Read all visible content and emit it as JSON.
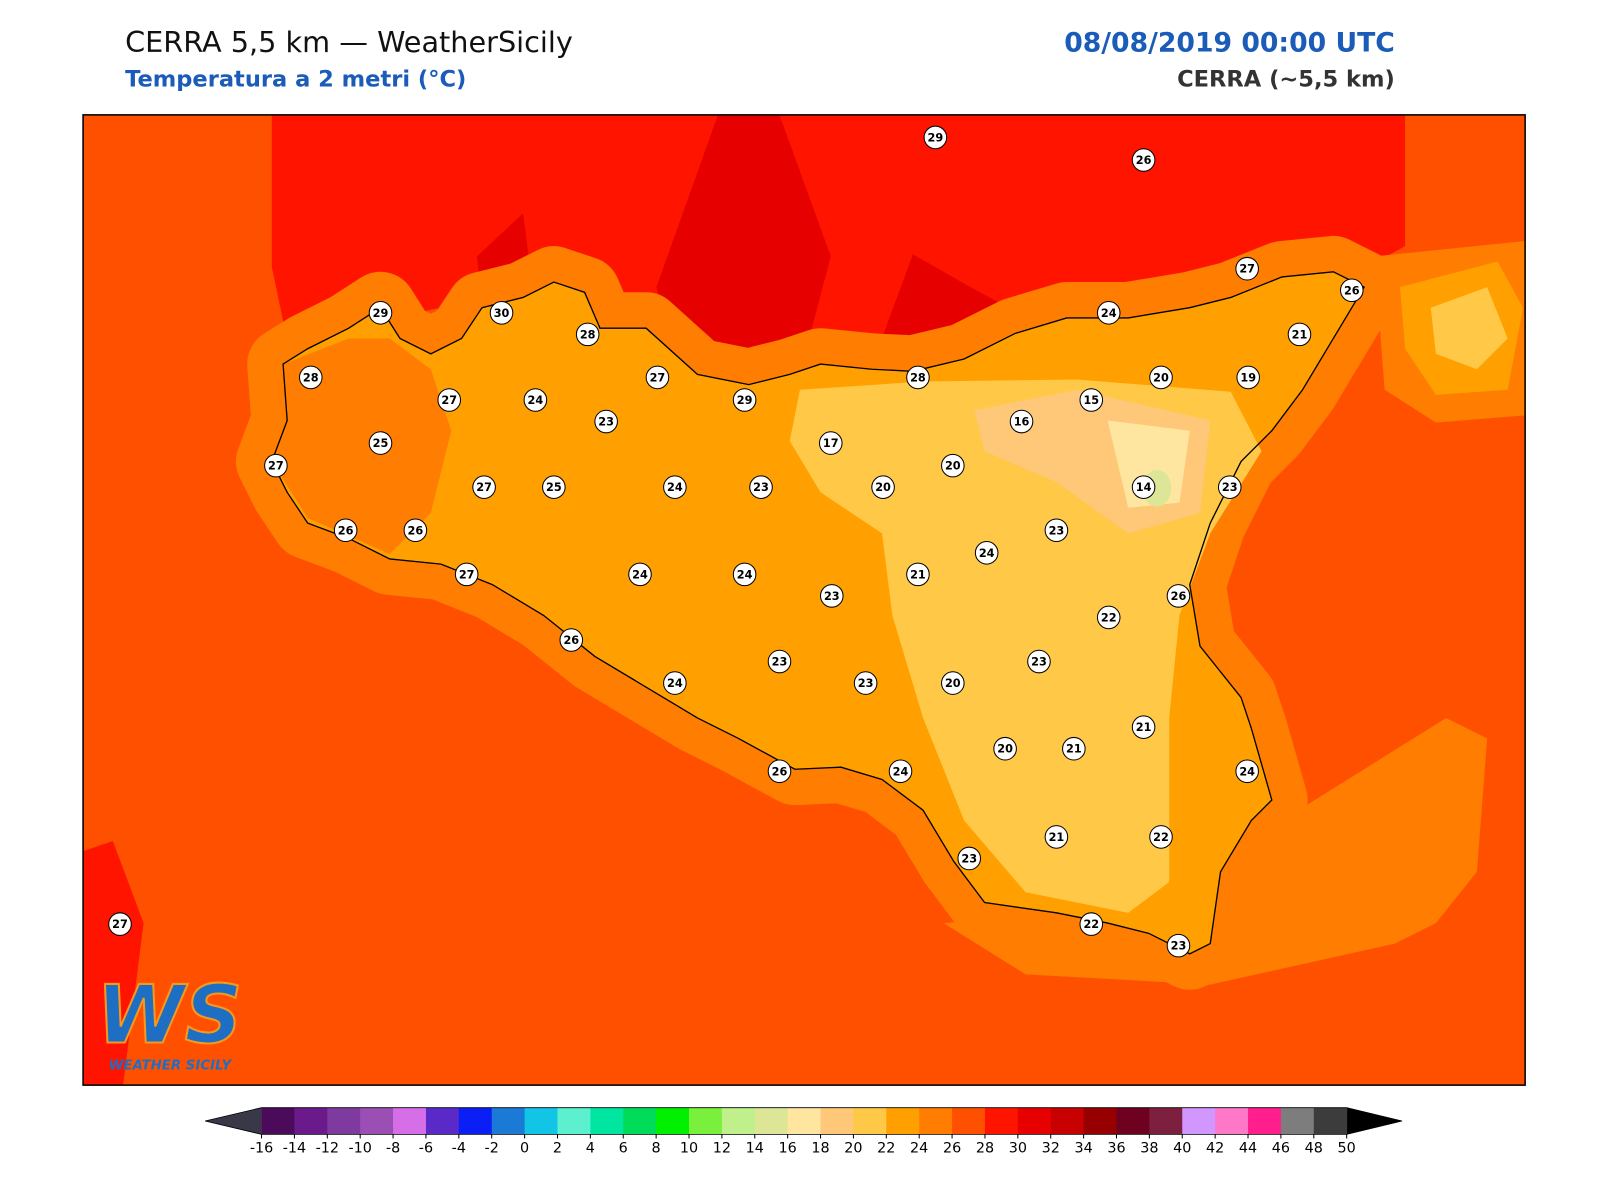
{
  "header": {
    "title": "CERRA 5,5 km — WeatherSicily",
    "subtitle": "Temperatura a 2 metri (°C)",
    "date": "08/08/2019 00:00 UTC",
    "model": "CERRA (~5,5 km)"
  },
  "stations": {
    "values": [
      29,
      26,
      27,
      26,
      24,
      21,
      29,
      30,
      28,
      28,
      27,
      24,
      27,
      29,
      28,
      15,
      20,
      19,
      23,
      16,
      25,
      17,
      27,
      27,
      25,
      24,
      23,
      20,
      20,
      14,
      23,
      26,
      26,
      23,
      24,
      27,
      24,
      24,
      23,
      21,
      26,
      22,
      26,
      23,
      23,
      24,
      23,
      20,
      21,
      20,
      21,
      24,
      26,
      24,
      23,
      21,
      22,
      22,
      23,
      27
    ]
  },
  "logo": {
    "letters": "WS",
    "text": "WEATHER SICILY"
  },
  "colorbar": {
    "ticks": [
      -16,
      -14,
      -12,
      -10,
      -8,
      -6,
      -4,
      -2,
      0,
      2,
      4,
      6,
      8,
      10,
      12,
      14,
      16,
      18,
      20,
      22,
      24,
      26,
      28,
      30,
      32,
      34,
      36,
      38,
      40,
      42,
      44,
      46,
      48,
      50
    ],
    "colors": [
      "#4b0a5a",
      "#6a1a8a",
      "#7f3aa0",
      "#9b4fb5",
      "#d66ee8",
      "#5a2ac8",
      "#0a1ef5",
      "#1a7ad6",
      "#12c4e6",
      "#5cf0cf",
      "#00e6a0",
      "#00dc5a",
      "#00f000",
      "#78f03c",
      "#c0f08c",
      "#dce696",
      "#ffe6a0",
      "#ffc878",
      "#ffc846",
      "#ffa000",
      "#ff7d00",
      "#ff5000",
      "#ff1400",
      "#e60000",
      "#c80000",
      "#960000",
      "#6e0020",
      "#7d2040",
      "#d296ff",
      "#ff78c8",
      "#ff1e8c",
      "#7d7d7d",
      "#3c3c3c"
    ],
    "under": "#383848",
    "over": "#000000"
  }
}
